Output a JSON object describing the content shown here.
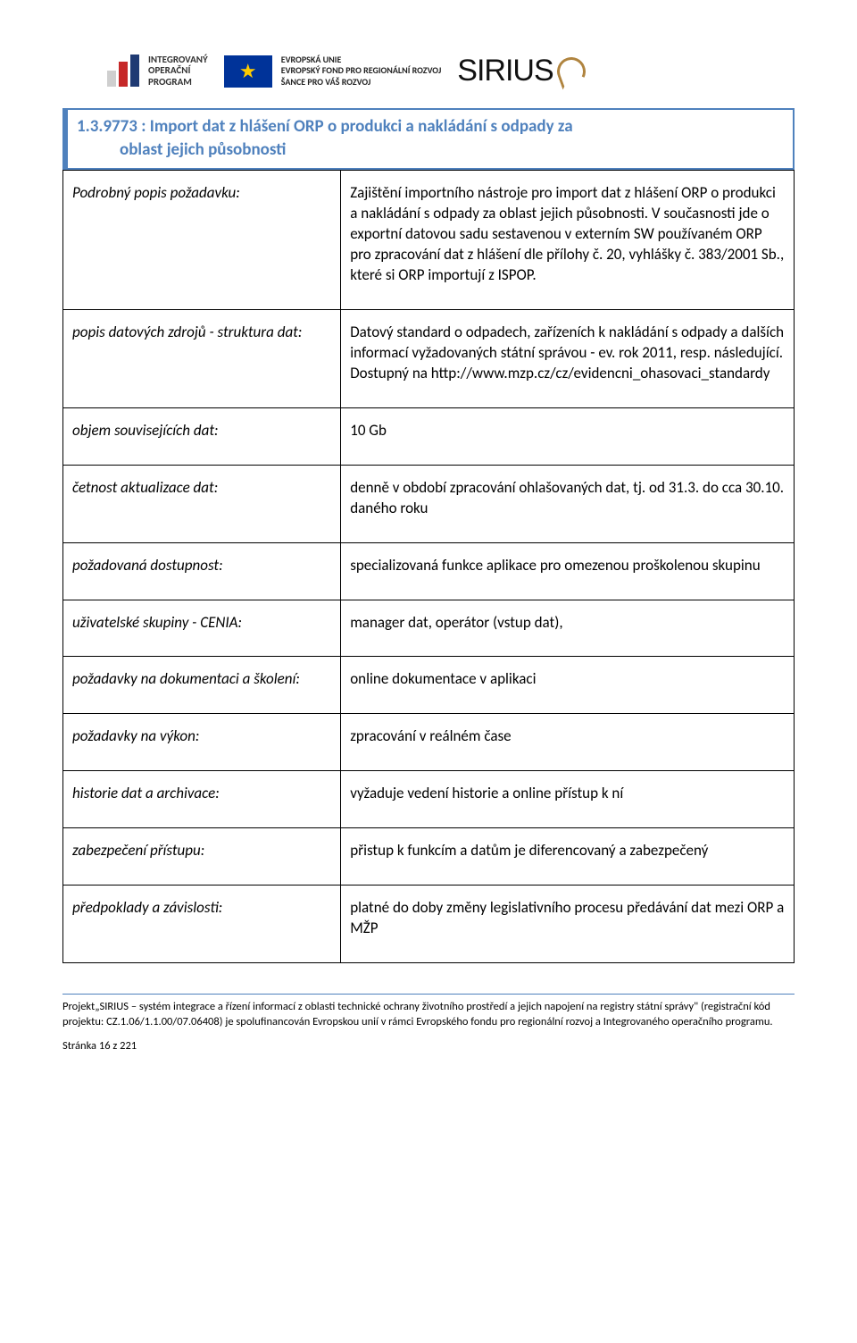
{
  "logos": {
    "iop_lines": [
      "INTEGROVANÝ",
      "OPERAČNÍ",
      "PROGRAM"
    ],
    "iop_bar_colors": [
      "#cfcfcf",
      "#c62828",
      "#1f3a73"
    ],
    "iop_bar_heights": [
      18,
      28,
      36
    ],
    "eu_lines": [
      "EVROPSKÁ UNIE",
      "EVROPSKÝ FOND PRO REGIONÁLNÍ ROZVOJ",
      "ŠANCE PRO VÁŠ ROZVOJ"
    ],
    "sirius": "SIRIUS"
  },
  "section": {
    "number_title": "1.3.9773 : Import dat z hlášení ORP o produkci a nakládání s odpady za",
    "title_line2": "oblast jejich působnosti"
  },
  "rows": [
    {
      "label": "Podrobný popis požadavku:",
      "value": "Zajištění importního nástroje pro import dat z hlášení ORP o produkci a nakládání s odpady za oblast jejich působnosti. V současnosti jde o exportní datovou sadu sestavenou v externím SW používaném ORP pro zpracování dat z hlášení dle přílohy č. 20, vyhlášky č. 383/2001 Sb., které si ORP importují z ISPOP."
    },
    {
      "label": "popis datových zdrojů - struktura dat:",
      "value": "Datový standard o odpadech, zařízeních k nakládání s odpady a dalších informací vyžadovaných státní správou - ev. rok 2011, resp. následující. Dostupný na http://www.mzp.cz/cz/evidencni_ohasovaci_standardy"
    },
    {
      "label": "objem souvisejících dat:",
      "value": "10 Gb"
    },
    {
      "label": "četnost aktualizace dat:",
      "value": "denně v období zpracování ohlašovaných dat, tj. od 31.3. do cca 30.10. daného roku"
    },
    {
      "label": "požadovaná dostupnost:",
      "value": "specializovaná funkce aplikace pro omezenou proškolenou skupinu"
    },
    {
      "label": "uživatelské skupiny - CENIA:",
      "value": "manager dat, operátor (vstup dat),"
    },
    {
      "label": "požadavky na dokumentaci a školení:",
      "value": "online dokumentace v aplikaci"
    },
    {
      "label": "požadavky na výkon:",
      "value": "zpracování v reálném čase"
    },
    {
      "label": "historie dat a archivace:",
      "value": "vyžaduje vedení historie a online přístup k ní"
    },
    {
      "label": "zabezpečení přístupu:",
      "value": "přistup k funkcím a datům je diferencovaný a zabezpečený"
    },
    {
      "label": "předpoklady a závislosti:",
      "value": "platné do doby změny legislativního procesu předávání dat mezi ORP a MŽP"
    }
  ],
  "footer": {
    "text": "Projekt„SIRIUS – systém integrace a řízení informací z oblasti technické ochrany životního prostředí a jejich napojení na registry státní správy\" (registrační kód projektu: CZ.1.06/1.1.00/07.06408) je spolufinancován Evropskou unií v rámci Evropského fondu pro regionální rozvoj a Integrovaného operačního programu.",
    "page": "Stránka 16 z 221"
  },
  "colors": {
    "accent": "#4f81bd",
    "border": "#000000"
  }
}
